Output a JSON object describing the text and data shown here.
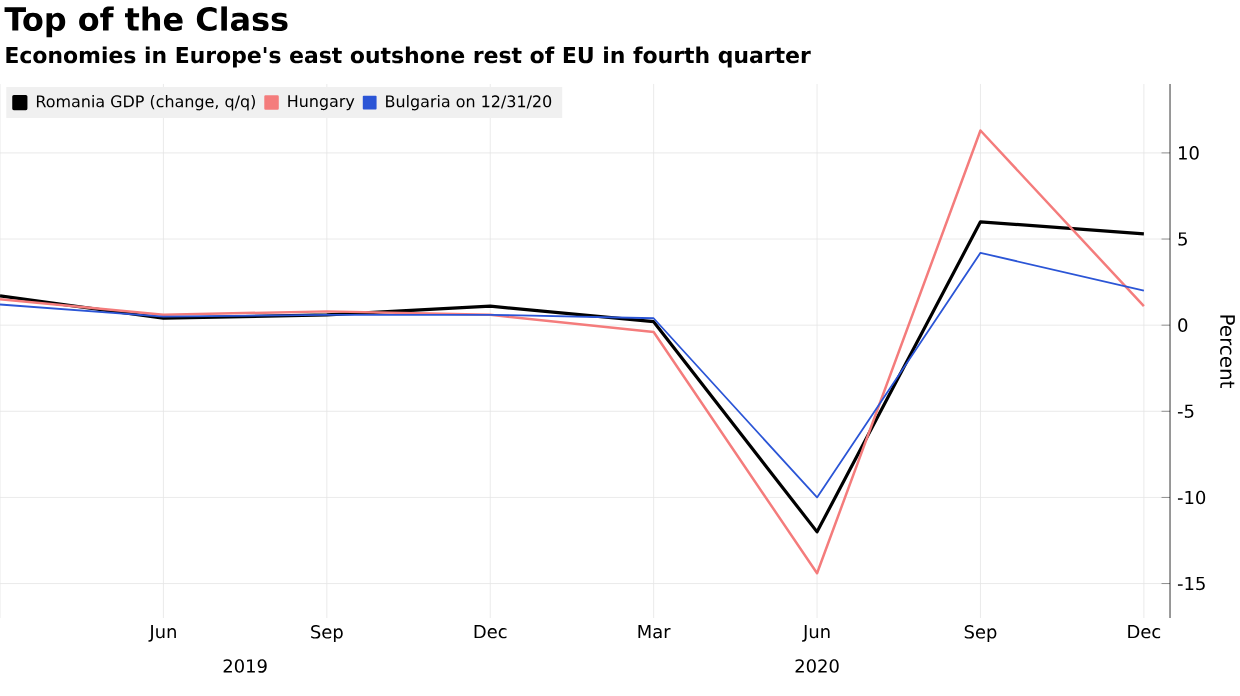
{
  "chart_data": {
    "type": "line",
    "title": "Top of the Class",
    "subtitle": "Economies in Europe's east outshone rest of EU in fourth quarter",
    "ylabel": "Percent",
    "categories": [
      null,
      "Jun",
      "Sep",
      "Dec",
      "Mar",
      "Jun",
      "Sep",
      "Dec"
    ],
    "series": [
      {
        "name": "Romania GDP (change, q/q)",
        "color": "#000000",
        "values": [
          1.7,
          0.4,
          0.6,
          1.1,
          0.2,
          -12.0,
          6.0,
          5.3
        ]
      },
      {
        "name": "Hungary",
        "color": "#f47c7c",
        "values": [
          1.5,
          0.6,
          0.8,
          0.6,
          -0.4,
          -14.4,
          11.3,
          1.1
        ]
      },
      {
        "name": "Bulgaria on 12/31/20",
        "color": "#2b55d6",
        "values": [
          1.2,
          0.5,
          0.6,
          0.6,
          0.4,
          -10.0,
          4.2,
          2.0
        ]
      }
    ],
    "ylim": [
      -17,
      14
    ],
    "yticks": [
      -15,
      -10,
      -5,
      0,
      5,
      10
    ],
    "annotations": [
      "2019",
      "2020"
    ],
    "grid": true,
    "legend": "top left",
    "marker": "none",
    "line_style": "solid"
  }
}
